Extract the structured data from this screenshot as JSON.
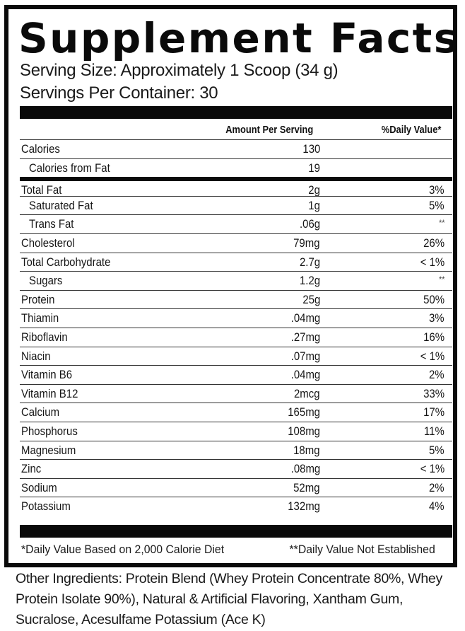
{
  "label": {
    "title": "Supplement Facts",
    "serving_size": "Serving Size: Approximately 1 Scoop (34 g)",
    "servings_per_container": "Servings Per Container: 30",
    "column_headers": {
      "amount": "Amount Per Serving",
      "daily_value": "%Daily Value*"
    },
    "rows": [
      {
        "name": "Calories",
        "amount": "130",
        "dv": "",
        "indent": false,
        "thick_top": false
      },
      {
        "name": "Calories from Fat",
        "amount": "19",
        "dv": "",
        "indent": true,
        "thick_top": false
      },
      {
        "name": "Total Fat",
        "amount": "2g",
        "dv": "3%",
        "indent": false,
        "thick_top": true
      },
      {
        "name": "Saturated Fat",
        "amount": "1g",
        "dv": "5%",
        "indent": true,
        "thick_top": false
      },
      {
        "name": "Trans Fat",
        "amount": ".06g",
        "dv": "**",
        "indent": true,
        "thick_top": false
      },
      {
        "name": "Cholesterol",
        "amount": "79mg",
        "dv": "26%",
        "indent": false,
        "thick_top": false
      },
      {
        "name": "Total Carbohydrate",
        "amount": "2.7g",
        "dv": "< 1%",
        "indent": false,
        "thick_top": false
      },
      {
        "name": "Sugars",
        "amount": "1.2g",
        "dv": "**",
        "indent": true,
        "thick_top": false
      },
      {
        "name": "Protein",
        "amount": "25g",
        "dv": "50%",
        "indent": false,
        "thick_top": false
      },
      {
        "name": "Thiamin",
        "amount": ".04mg",
        "dv": "3%",
        "indent": false,
        "thick_top": false
      },
      {
        "name": "Riboflavin",
        "amount": ".27mg",
        "dv": "16%",
        "indent": false,
        "thick_top": false
      },
      {
        "name": "Niacin",
        "amount": ".07mg",
        "dv": "< 1%",
        "indent": false,
        "thick_top": false
      },
      {
        "name": "Vitamin B6",
        "amount": ".04mg",
        "dv": "2%",
        "indent": false,
        "thick_top": false
      },
      {
        "name": "Vitamin B12",
        "amount": "2mcg",
        "dv": "33%",
        "indent": false,
        "thick_top": false
      },
      {
        "name": "Calcium",
        "amount": "165mg",
        "dv": "17%",
        "indent": false,
        "thick_top": false
      },
      {
        "name": "Phosphorus",
        "amount": "108mg",
        "dv": "11%",
        "indent": false,
        "thick_top": false
      },
      {
        "name": "Magnesium",
        "amount": "18mg",
        "dv": "5%",
        "indent": false,
        "thick_top": false
      },
      {
        "name": "Zinc",
        "amount": ".08mg",
        "dv": "< 1%",
        "indent": false,
        "thick_top": false
      },
      {
        "name": "Sodium",
        "amount": "52mg",
        "dv": "2%",
        "indent": false,
        "thick_top": false
      },
      {
        "name": "Potassium",
        "amount": "132mg",
        "dv": "4%",
        "indent": false,
        "thick_top": false
      }
    ],
    "footnotes": {
      "left": "*Daily Value Based on 2,000 Calorie Diet",
      "right": "**Daily Value Not Established"
    }
  },
  "ingredients": "Other Ingredients: Protein Blend (Whey Protein Concentrate 80%, Whey Protein Isolate 90%), Natural & Artificial Flavoring, Xantham Gum, Sucralose, Acesulfame Potassium (Ace K)",
  "colors": {
    "ink": "#0a0a0a",
    "background": "#ffffff",
    "rule": "#333333"
  }
}
